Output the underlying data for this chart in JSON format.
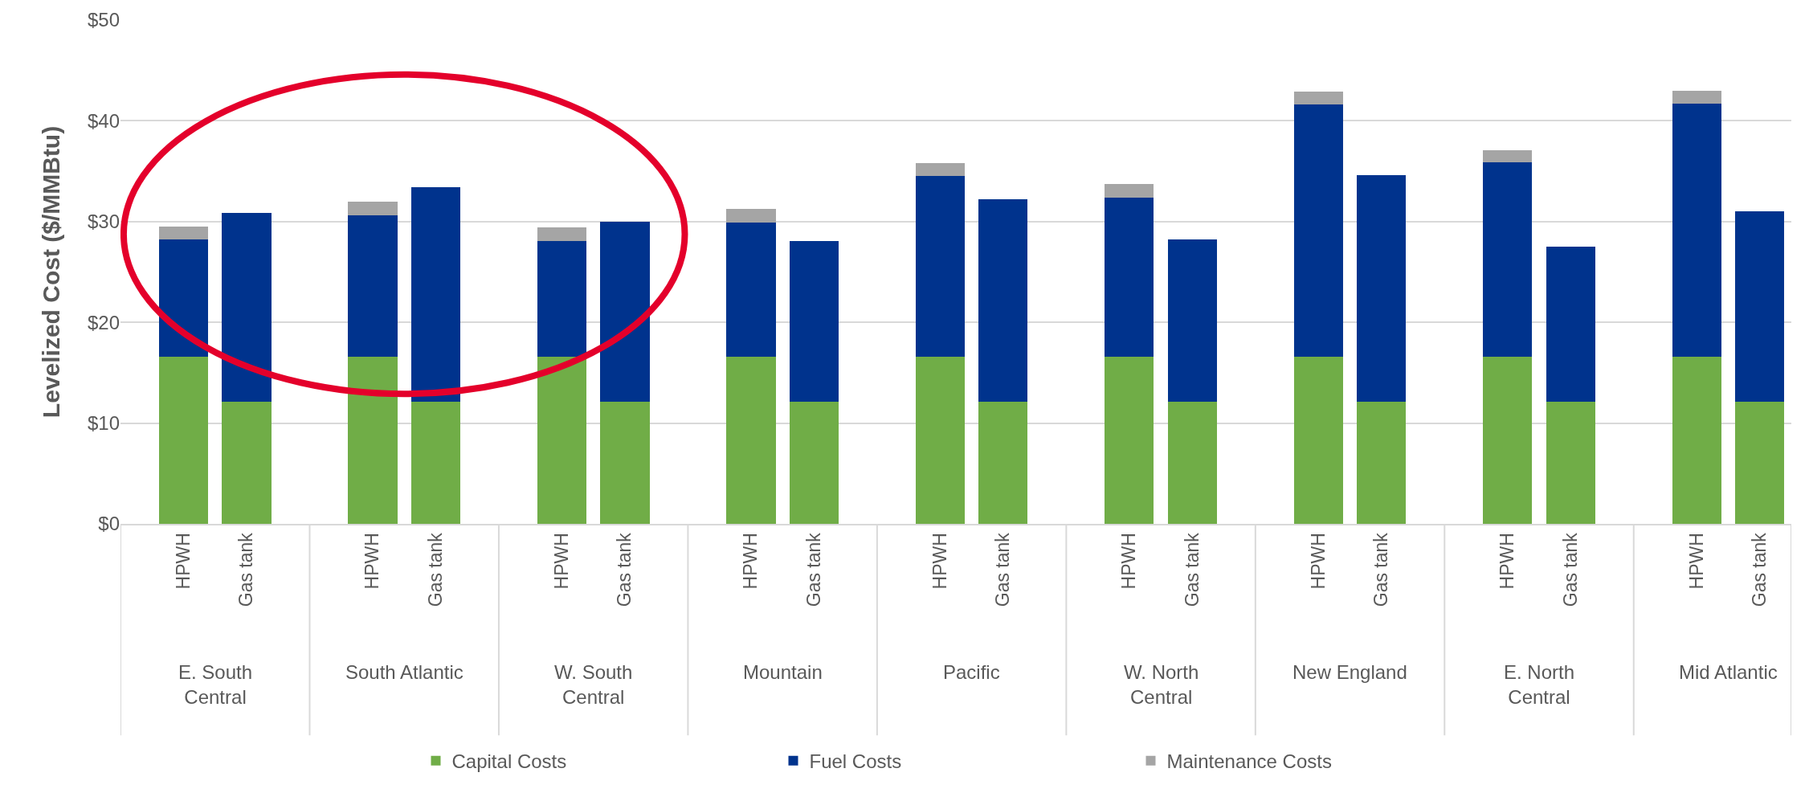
{
  "chart_data": {
    "type": "bar",
    "stacked": true,
    "ylabel": "Levelized Cost ($/MMBtu)",
    "categories": [
      "HPWH",
      "Gas tank",
      "HPWH",
      "Gas tank",
      "HPWH",
      "Gas tank",
      "HPWH",
      "Gas tank",
      "HPWH",
      "Gas tank",
      "HPWH",
      "Gas tank",
      "HPWH",
      "Gas tank",
      "HPWH",
      "Gas tank",
      "HPWH",
      "Gas tank"
    ],
    "annotations": [
      "E. South Central",
      "South Atlantic",
      "W. South Central",
      "Mountain",
      "Pacific",
      "W. North Central",
      "New England",
      "E. North Central",
      "Mid Atlantic"
    ],
    "series": [
      {
        "name": "Capital Costs",
        "color": "#70ad47",
        "values": [
          16.6,
          12.1,
          16.6,
          12.1,
          16.6,
          12.1,
          16.6,
          12.1,
          16.6,
          12.1,
          16.6,
          12.1,
          16.6,
          12.1,
          16.6,
          12.1,
          16.6,
          12.1
        ]
      },
      {
        "name": "Fuel Costs",
        "color": "#00338d",
        "values": [
          11.6,
          18.8,
          14.0,
          21.3,
          11.5,
          17.9,
          13.3,
          16.0,
          17.9,
          20.1,
          15.8,
          16.1,
          25.0,
          22.5,
          19.3,
          15.4,
          25.1,
          18.9
        ]
      },
      {
        "name": "Maintenance Costs",
        "color": "#a5a5a5",
        "values": [
          1.3,
          null,
          1.4,
          null,
          1.3,
          null,
          1.4,
          null,
          1.3,
          null,
          1.3,
          null,
          1.3,
          null,
          1.2,
          null,
          1.3,
          null
        ]
      }
    ],
    "ylim": [
      0,
      50
    ],
    "yticks": [
      {
        "value": 0,
        "label": "$0"
      },
      {
        "value": 10,
        "label": "$10"
      },
      {
        "value": 20,
        "label": "$20"
      },
      {
        "value": 30,
        "label": "$30"
      },
      {
        "value": 40,
        "label": "$40"
      },
      {
        "value": 50,
        "label": "$50"
      }
    ],
    "grid": "y",
    "legend": "bottom"
  }
}
